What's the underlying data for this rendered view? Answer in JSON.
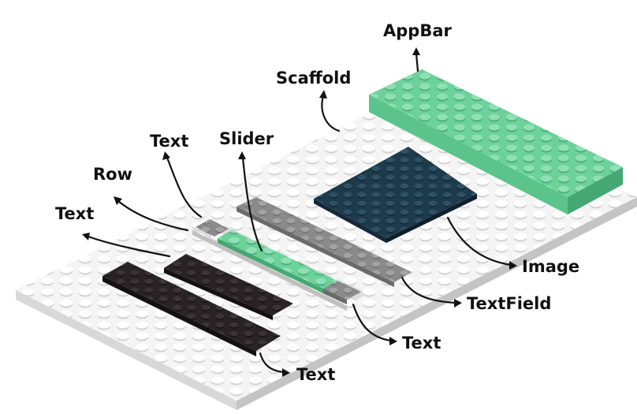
{
  "colors": {
    "background": "#ffffff",
    "baseplate_top": "#f3f3f3",
    "baseplate_side": "#d4d4d4",
    "stud": "#ffffff",
    "stud_edge": "#cfcfcf",
    "green": "#6dd19a",
    "green_dark": "#4cb07a",
    "navy": "#1e3b4c",
    "gray": "#8a8a8a",
    "gray_light": "#d9d9d9",
    "black": "#2a2326",
    "ink": "#111111"
  },
  "labels": {
    "appbar": "AppBar",
    "scaffold": "Scaffold",
    "text_top": "Text",
    "slider": "Slider",
    "row": "Row",
    "text_left": "Text",
    "image": "Image",
    "textfield": "TextField",
    "text_mid": "Text",
    "text_bottom": "Text"
  }
}
